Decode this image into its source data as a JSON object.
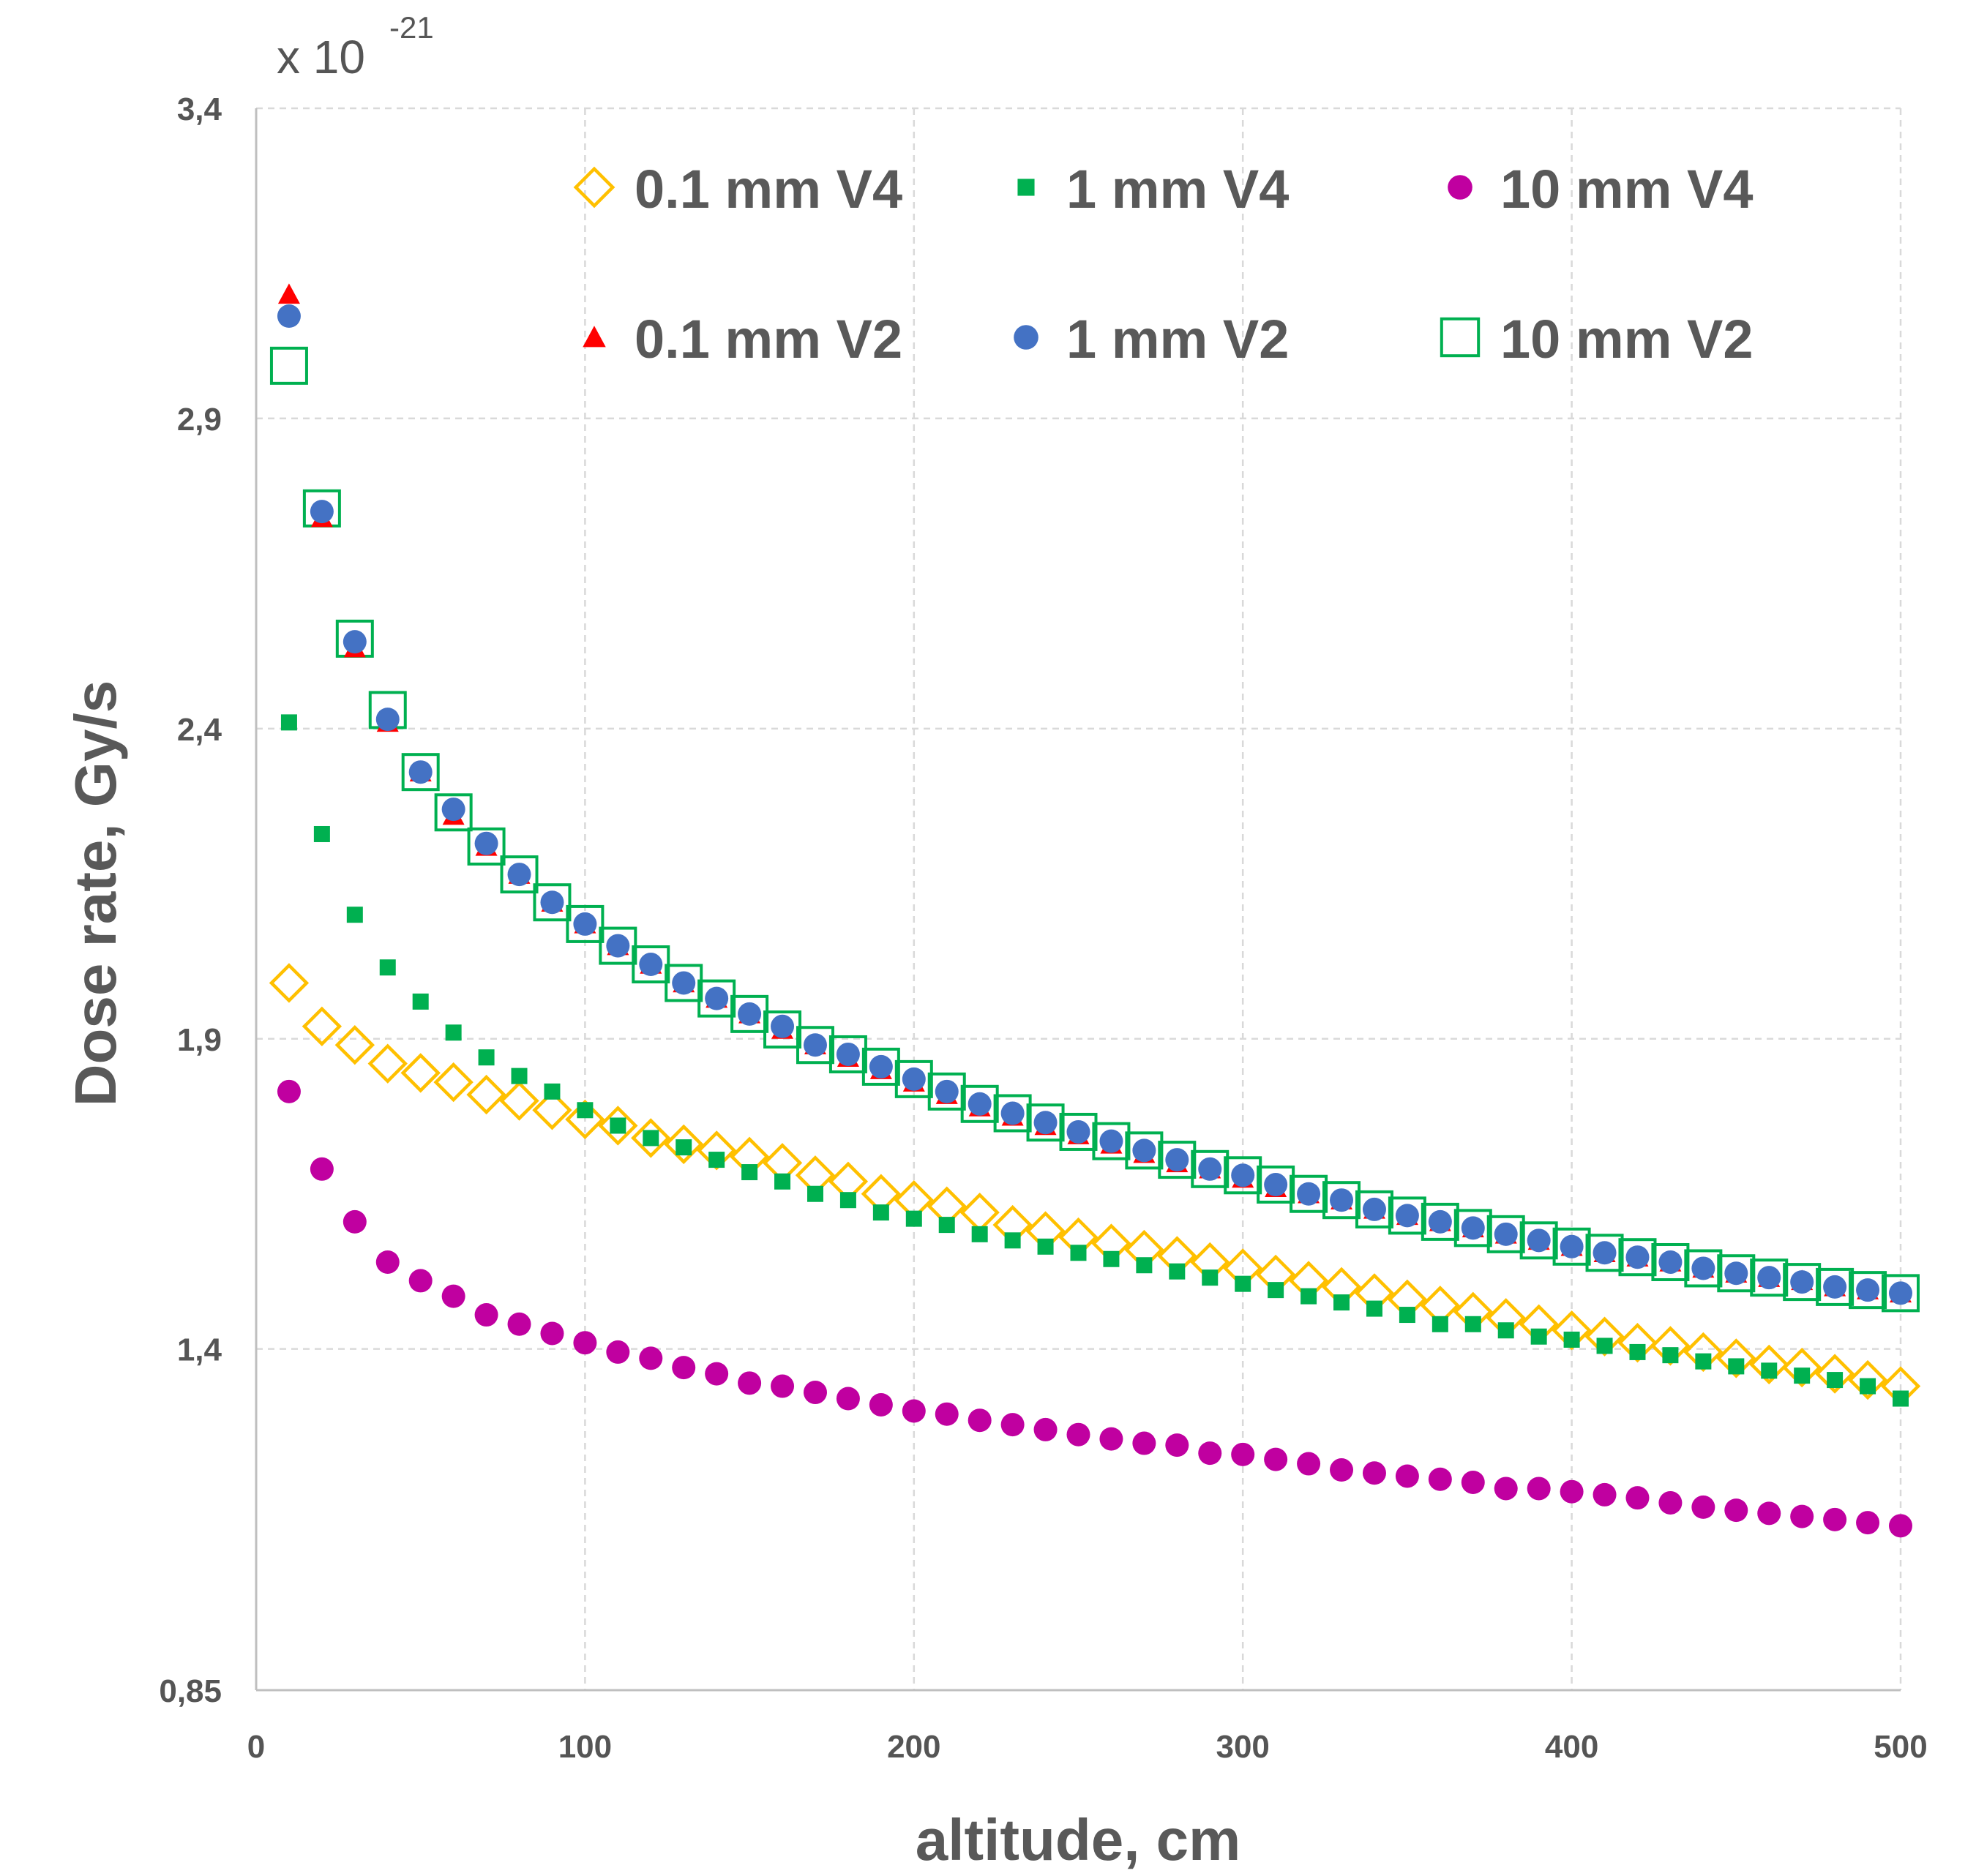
{
  "chart_data": {
    "type": "scatter",
    "title": "",
    "xlabel": "altitude, cm",
    "ylabel": "Dose rate, Gy/s",
    "y_multiplier": {
      "base": "x 10",
      "exponent": "-21"
    },
    "xlim": [
      0,
      500
    ],
    "ylim": [
      0.85,
      3.4
    ],
    "x_ticks": [
      0,
      100,
      200,
      300,
      400,
      500
    ],
    "x_tick_labels": [
      "0",
      "100",
      "200",
      "300",
      "400",
      "500"
    ],
    "y_ticks": [
      0.85,
      1.4,
      1.9,
      2.4,
      2.9,
      3.4
    ],
    "y_tick_labels": [
      "0,85",
      "1,4",
      "1,9",
      "2,4",
      "2,9",
      "3,4"
    ],
    "grid": true,
    "legend_position": "top",
    "x": [
      10,
      20,
      30,
      40,
      50,
      60,
      70,
      80,
      90,
      100,
      110,
      120,
      130,
      140,
      150,
      160,
      170,
      180,
      190,
      200,
      210,
      220,
      230,
      240,
      250,
      260,
      270,
      280,
      290,
      300,
      310,
      320,
      330,
      340,
      350,
      360,
      370,
      380,
      390,
      400,
      410,
      420,
      430,
      440,
      450,
      460,
      470,
      480,
      490,
      500
    ],
    "series": [
      {
        "name": "0.1 mm V4",
        "marker": "diamond-open",
        "color": "#ffc000",
        "values": [
          1.99,
          1.92,
          1.89,
          1.86,
          1.845,
          1.83,
          1.81,
          1.8,
          1.785,
          1.77,
          1.76,
          1.74,
          1.73,
          1.72,
          1.71,
          1.7,
          1.68,
          1.67,
          1.65,
          1.64,
          1.63,
          1.62,
          1.6,
          1.59,
          1.58,
          1.57,
          1.56,
          1.55,
          1.54,
          1.53,
          1.52,
          1.51,
          1.5,
          1.49,
          1.48,
          1.47,
          1.46,
          1.45,
          1.44,
          1.43,
          1.42,
          1.41,
          1.405,
          1.395,
          1.385,
          1.375,
          1.37,
          1.36,
          1.35,
          1.34
        ]
      },
      {
        "name": "1 mm V4",
        "marker": "square-filled",
        "color": "#00b050",
        "values": [
          2.41,
          2.23,
          2.1,
          2.015,
          1.96,
          1.91,
          1.87,
          1.84,
          1.815,
          1.785,
          1.76,
          1.74,
          1.725,
          1.705,
          1.685,
          1.67,
          1.65,
          1.64,
          1.62,
          1.61,
          1.6,
          1.585,
          1.575,
          1.565,
          1.555,
          1.545,
          1.535,
          1.525,
          1.515,
          1.505,
          1.495,
          1.485,
          1.475,
          1.465,
          1.455,
          1.44,
          1.44,
          1.43,
          1.42,
          1.415,
          1.405,
          1.395,
          1.39,
          1.38,
          1.372,
          1.365,
          1.357,
          1.35,
          1.34,
          1.32
        ]
      },
      {
        "name": "10 mm V4",
        "marker": "circle-filled",
        "color": "#c000a0",
        "values": [
          1.815,
          1.69,
          1.605,
          1.54,
          1.51,
          1.485,
          1.455,
          1.44,
          1.425,
          1.41,
          1.395,
          1.385,
          1.37,
          1.36,
          1.345,
          1.34,
          1.33,
          1.32,
          1.31,
          1.3,
          1.295,
          1.285,
          1.278,
          1.27,
          1.262,
          1.255,
          1.248,
          1.245,
          1.232,
          1.23,
          1.222,
          1.215,
          1.205,
          1.2,
          1.195,
          1.19,
          1.185,
          1.175,
          1.175,
          1.17,
          1.165,
          1.16,
          1.152,
          1.145,
          1.14,
          1.135,
          1.13,
          1.125,
          1.12,
          1.115
        ]
      },
      {
        "name": "0.1 mm V2",
        "marker": "triangle-filled",
        "color": "#ff0000",
        "values": [
          3.1,
          2.74,
          2.53,
          2.41,
          2.33,
          2.26,
          2.21,
          2.165,
          2.12,
          2.085,
          2.05,
          2.02,
          1.99,
          1.965,
          1.94,
          1.915,
          1.89,
          1.87,
          1.85,
          1.83,
          1.81,
          1.79,
          1.775,
          1.76,
          1.745,
          1.73,
          1.715,
          1.7,
          1.69,
          1.675,
          1.66,
          1.65,
          1.64,
          1.625,
          1.615,
          1.605,
          1.595,
          1.585,
          1.575,
          1.565,
          1.555,
          1.548,
          1.54,
          1.53,
          1.522,
          1.515,
          1.51,
          1.5,
          1.495,
          1.49
        ]
      },
      {
        "name": "1 mm V2",
        "marker": "circle-filled",
        "color": "#4472c4",
        "values": [
          3.065,
          2.75,
          2.54,
          2.415,
          2.33,
          2.27,
          2.215,
          2.165,
          2.12,
          2.085,
          2.05,
          2.02,
          1.99,
          1.965,
          1.94,
          1.92,
          1.89,
          1.875,
          1.855,
          1.835,
          1.815,
          1.795,
          1.78,
          1.765,
          1.75,
          1.735,
          1.72,
          1.705,
          1.69,
          1.68,
          1.665,
          1.65,
          1.64,
          1.625,
          1.615,
          1.605,
          1.595,
          1.585,
          1.575,
          1.565,
          1.555,
          1.548,
          1.54,
          1.53,
          1.522,
          1.515,
          1.508,
          1.5,
          1.495,
          1.49
        ]
      },
      {
        "name": "10 mm V2",
        "marker": "square-open",
        "color": "#00b050",
        "values": [
          2.985,
          2.755,
          2.545,
          2.43,
          2.33,
          2.265,
          2.21,
          2.165,
          2.12,
          2.085,
          2.05,
          2.02,
          1.99,
          1.965,
          1.94,
          1.915,
          1.89,
          1.875,
          1.855,
          1.835,
          1.815,
          1.795,
          1.78,
          1.765,
          1.75,
          1.735,
          1.72,
          1.705,
          1.69,
          1.68,
          1.665,
          1.65,
          1.64,
          1.625,
          1.615,
          1.605,
          1.595,
          1.585,
          1.575,
          1.565,
          1.555,
          1.548,
          1.54,
          1.53,
          1.522,
          1.515,
          1.508,
          1.5,
          1.495,
          1.49
        ]
      }
    ]
  }
}
